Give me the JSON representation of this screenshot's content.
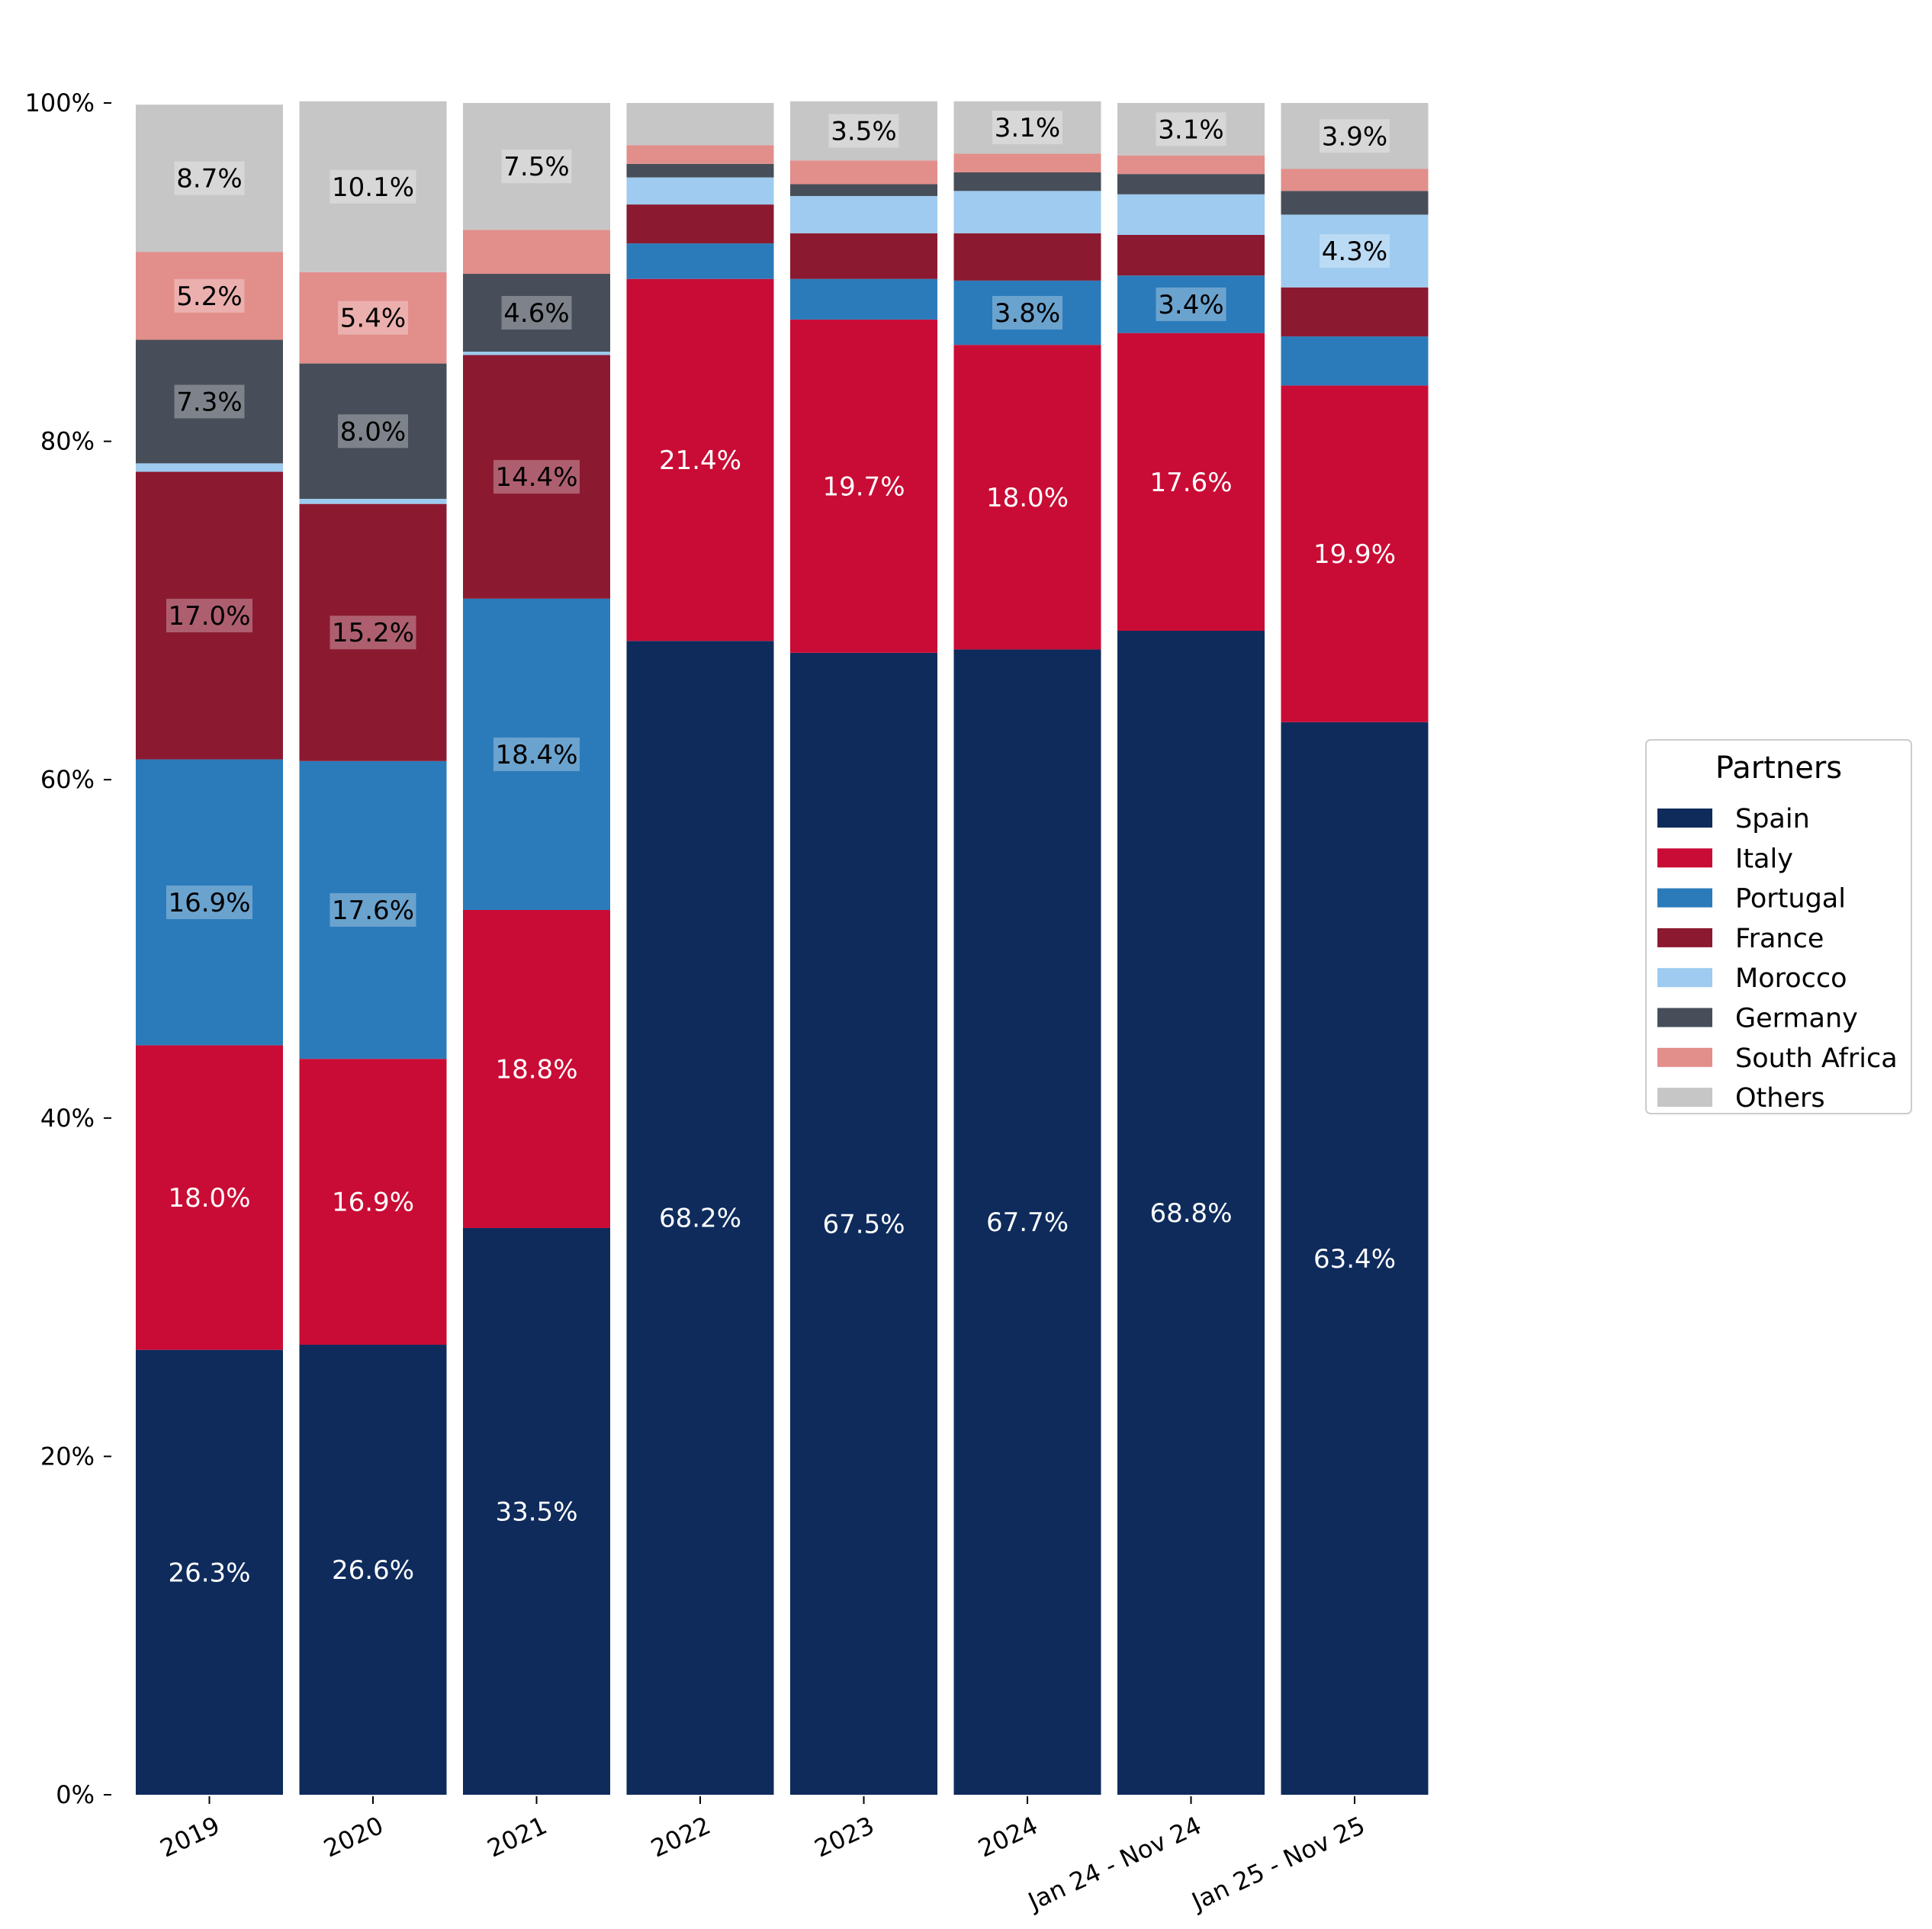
{
  "chart_data": {
    "type": "bar",
    "stacked": true,
    "title": "",
    "xlabel": "",
    "ylabel": "",
    "ylim": [
      0,
      100
    ],
    "y_ticks": [
      "0%",
      "20%",
      "40%",
      "60%",
      "80%",
      "100%"
    ],
    "grid": false,
    "legend_title": "Partners",
    "legend_position": "right-center",
    "categories": [
      "2019",
      "2020",
      "2021",
      "2022",
      "2023",
      "2024",
      "Jan 24 - Nov 24",
      "Jan 25 - Nov 25"
    ],
    "series": [
      {
        "name": "Spain",
        "color": "#0e2b5c",
        "values": [
          26.3,
          26.6,
          33.5,
          68.2,
          67.5,
          67.7,
          68.8,
          63.4
        ]
      },
      {
        "name": "Italy",
        "color": "#c90c35",
        "values": [
          18.0,
          16.9,
          18.8,
          21.4,
          19.7,
          18.0,
          17.6,
          19.9
        ]
      },
      {
        "name": "Portugal",
        "color": "#2b7bba",
        "values": [
          16.9,
          17.6,
          18.4,
          2.1,
          2.4,
          3.8,
          3.4,
          2.9
        ]
      },
      {
        "name": "France",
        "color": "#8b1a31",
        "values": [
          17.0,
          15.2,
          14.4,
          2.3,
          2.7,
          2.8,
          2.4,
          2.9
        ]
      },
      {
        "name": "Morocco",
        "color": "#9ecbef",
        "values": [
          0.5,
          0.3,
          0.2,
          1.6,
          2.2,
          2.5,
          2.4,
          4.3
        ]
      },
      {
        "name": "Germany",
        "color": "#474e59",
        "values": [
          7.3,
          8.0,
          4.6,
          0.8,
          0.7,
          1.1,
          1.2,
          1.4
        ]
      },
      {
        "name": "South Africa",
        "color": "#e28e8b",
        "values": [
          5.2,
          5.4,
          2.6,
          1.1,
          1.4,
          1.1,
          1.1,
          1.3
        ]
      },
      {
        "name": "Others",
        "color": "#c6c6c6",
        "values": [
          8.7,
          10.1,
          7.5,
          2.5,
          3.5,
          3.1,
          3.1,
          3.9
        ]
      }
    ],
    "data_labels": [
      [
        "26.3%",
        "26.6%",
        "33.5%",
        "68.2%",
        "67.5%",
        "67.7%",
        "68.8%",
        "63.4%"
      ],
      [
        "18.0%",
        "16.9%",
        "18.8%",
        "21.4%",
        "19.7%",
        "18.0%",
        "17.6%",
        "19.9%"
      ],
      [
        "16.9%",
        "17.6%",
        "18.4%",
        "",
        "",
        "3.8%",
        "3.4%",
        ""
      ],
      [
        "17.0%",
        "15.2%",
        "14.4%",
        "",
        "",
        "",
        "",
        ""
      ],
      [
        "",
        "",
        "",
        "",
        "",
        "",
        "",
        "4.3%"
      ],
      [
        "7.3%",
        "8.0%",
        "4.6%",
        "",
        "",
        "",
        "",
        ""
      ],
      [
        "5.2%",
        "5.4%",
        "",
        "",
        "",
        "",
        "",
        ""
      ],
      [
        "8.7%",
        "10.1%",
        "7.5%",
        "",
        "3.5%",
        "3.1%",
        "3.1%",
        "3.9%"
      ]
    ]
  }
}
